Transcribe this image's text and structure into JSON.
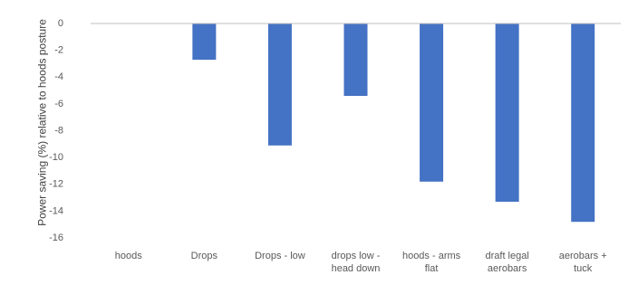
{
  "chart_data": {
    "type": "bar",
    "y_label": "Power saving (%) relative to hoods posture",
    "categories": [
      "hoods",
      "Drops",
      "Drops - low",
      "drops low - head down",
      "hoods - arms flat",
      "draft legal aerobars",
      "aerobars + tuck"
    ],
    "values": [
      0,
      -2.7,
      -9.1,
      -5.4,
      -11.8,
      -13.3,
      -14.8
    ],
    "color": "#4472c4",
    "ylim": [
      -16,
      0
    ],
    "yticks": [
      -16,
      -14,
      -12,
      -10,
      -8,
      -6,
      -4,
      -2,
      0
    ],
    "grid": false
  }
}
